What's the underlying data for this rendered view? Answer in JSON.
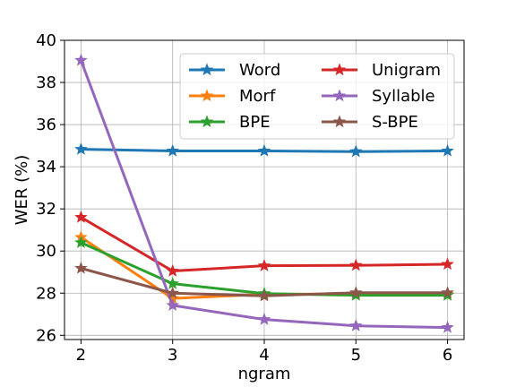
{
  "chart_data": {
    "type": "line",
    "xlabel": "ngram",
    "ylabel": "WER (%)",
    "x": [
      2,
      3,
      4,
      5,
      6
    ],
    "xticks": [
      "2",
      "3",
      "4",
      "5",
      "6"
    ],
    "yticks": [
      "26",
      "28",
      "30",
      "32",
      "34",
      "36",
      "38",
      "40"
    ],
    "ylim": [
      25.8,
      40
    ],
    "xlim": [
      1.82,
      6.18
    ],
    "grid": true,
    "legend_position": "upper-right",
    "series": [
      {
        "name": "Word",
        "color": "#1f77b4",
        "values": [
          34.83,
          34.75,
          34.75,
          34.72,
          34.75
        ]
      },
      {
        "name": "Morf",
        "color": "#ff7f0e",
        "values": [
          30.65,
          27.75,
          27.95,
          27.95,
          27.95
        ]
      },
      {
        "name": "BPE",
        "color": "#2ca02c",
        "values": [
          30.4,
          28.45,
          27.98,
          27.9,
          27.9
        ]
      },
      {
        "name": "Unigram",
        "color": "#d62728",
        "values": [
          31.6,
          29.05,
          29.3,
          29.32,
          29.37
        ]
      },
      {
        "name": "Syllable",
        "color": "#9467bd",
        "values": [
          39.05,
          27.42,
          26.75,
          26.45,
          26.37
        ]
      },
      {
        "name": "S-BPE",
        "color": "#8c564b",
        "values": [
          29.18,
          28.0,
          27.87,
          28.02,
          28.02
        ]
      }
    ]
  }
}
